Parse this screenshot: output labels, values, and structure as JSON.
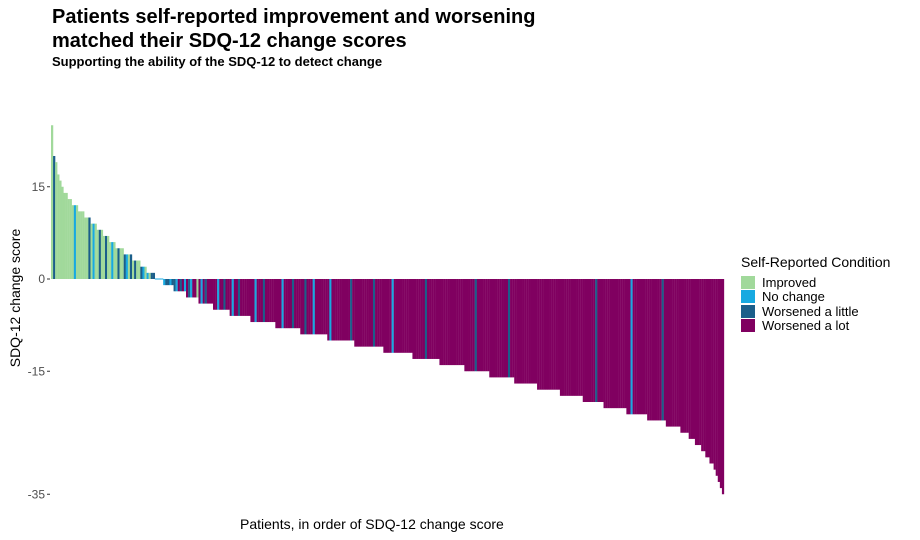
{
  "chart_data": {
    "type": "bar",
    "title": "Patients self-reported improvement and worsening matched their SDQ-12 change scores",
    "subtitle": "Supporting the ability of the SDQ-12 to detect change",
    "xlabel": "Patients, in order of SDQ-12 change score",
    "ylabel": "SDQ-12 change score",
    "ylim": [
      -36,
      25
    ],
    "yticks": [
      15,
      0,
      -15,
      -35
    ],
    "grid": false,
    "legend": {
      "title": "Self-Reported Condition",
      "placement": "right",
      "entries": [
        {
          "name": "Improved",
          "color": "#a1d99b"
        },
        {
          "name": "No change",
          "color": "#17a9e1"
        },
        {
          "name": "Worsened a little",
          "color": "#1b5e8a"
        },
        {
          "name": "Worsened a lot",
          "color": "#800060"
        }
      ]
    },
    "groups": [
      {
        "value": 25,
        "count": 1,
        "colors": [
          "Improved"
        ]
      },
      {
        "value": 20,
        "count": 1,
        "colors": [
          "Worsened a little"
        ]
      },
      {
        "value": 19,
        "count": 1,
        "colors": [
          "Improved"
        ]
      },
      {
        "value": 17,
        "count": 1,
        "colors": [
          "Improved"
        ]
      },
      {
        "value": 16,
        "count": 1,
        "colors": [
          "Improved"
        ]
      },
      {
        "value": 15,
        "count": 1,
        "colors": [
          "Improved"
        ]
      },
      {
        "value": 14,
        "count": 2,
        "colors": [
          "Improved"
        ]
      },
      {
        "value": 13,
        "count": 2,
        "colors": [
          "Improved"
        ]
      },
      {
        "value": 12,
        "count": 3,
        "colors": [
          "Improved",
          "No change"
        ]
      },
      {
        "value": 11,
        "count": 3,
        "colors": [
          "Improved"
        ]
      },
      {
        "value": 10,
        "count": 3,
        "colors": [
          "Improved",
          "Improved",
          "Worsened a little"
        ]
      },
      {
        "value": 9,
        "count": 3,
        "colors": [
          "Improved",
          "No change",
          "Improved"
        ]
      },
      {
        "value": 8,
        "count": 3,
        "colors": [
          "Improved",
          "Worsened a little",
          "Improved"
        ]
      },
      {
        "value": 7,
        "count": 3,
        "colors": [
          "Improved",
          "Worsened a little"
        ]
      },
      {
        "value": 6,
        "count": 3,
        "colors": [
          "Improved",
          "No change",
          "Improved"
        ]
      },
      {
        "value": 5,
        "count": 4,
        "colors": [
          "Improved",
          "Worsened a little",
          "Improved",
          "Improved"
        ]
      },
      {
        "value": 4,
        "count": 4,
        "colors": [
          "Worsened a little",
          "No change",
          "Improved",
          "Worsened a little"
        ]
      },
      {
        "value": 3,
        "count": 4,
        "colors": [
          "Improved",
          "Worsened a little",
          "Improved",
          "Improved"
        ]
      },
      {
        "value": 2,
        "count": 3,
        "colors": [
          "Worsened a little",
          "No change",
          "Improved"
        ]
      },
      {
        "value": 1,
        "count": 4,
        "colors": [
          "No change",
          "Improved",
          "Worsened a little",
          "Worsened a little"
        ]
      },
      {
        "value": 0,
        "count": 4,
        "colors": [
          "No change"
        ]
      },
      {
        "value": -1,
        "count": 5,
        "colors": [
          "No change",
          "Worsened a little",
          "Worsened a little",
          "No change",
          "Worsened a little"
        ]
      },
      {
        "value": -2,
        "count": 6,
        "colors": [
          "Worsened a little",
          "No change",
          "Worsened a lot",
          "Worsened a little",
          "Worsened a lot",
          "No change"
        ]
      },
      {
        "value": -3,
        "count": 6,
        "colors": [
          "Worsened a lot",
          "Worsened a little",
          "No change",
          "Worsened a lot",
          "Worsened a lot",
          "Improved"
        ]
      },
      {
        "value": -4,
        "count": 7,
        "colors": [
          "Worsened a lot",
          "No change",
          "Worsened a lot",
          "Worsened a little",
          "Worsened a lot",
          "Worsened a lot",
          "Worsened a lot"
        ]
      },
      {
        "value": -5,
        "count": 8,
        "colors": [
          "Worsened a lot",
          "Worsened a lot",
          "No change",
          "Worsened a lot",
          "Worsened a lot",
          "Worsened a little",
          "Worsened a lot",
          "Worsened a lot"
        ]
      },
      {
        "value": -6,
        "count": 10,
        "colors": [
          "Worsened a lot",
          "No change",
          "Worsened a lot",
          "Worsened a lot",
          "Worsened a little",
          "Worsened a lot",
          "Worsened a lot",
          "Worsened a lot",
          "Worsened a lot",
          "Worsened a lot"
        ]
      },
      {
        "value": -7,
        "count": 12,
        "colors": [
          "Worsened a lot",
          "Worsened a lot",
          "No change",
          "Worsened a lot",
          "Worsened a lot",
          "Worsened a lot",
          "Worsened a little",
          "Worsened a lot",
          "Worsened a lot",
          "Worsened a lot",
          "Worsened a lot",
          "Worsened a lot"
        ]
      },
      {
        "value": -8,
        "count": 12,
        "colors": [
          "Worsened a lot",
          "Worsened a lot",
          "Worsened a lot",
          "No change",
          "Worsened a lot",
          "Worsened a lot",
          "Worsened a lot",
          "Worsened a lot",
          "Worsened a little",
          "Worsened a lot",
          "Worsened a lot",
          "Worsened a lot"
        ]
      },
      {
        "value": -9,
        "count": 13,
        "colors": [
          "Worsened a lot",
          "Worsened a lot",
          "Worsened a little",
          "Worsened a lot",
          "Worsened a lot",
          "Worsened a lot",
          "No change",
          "Worsened a lot",
          "Worsened a lot",
          "Worsened a lot",
          "Worsened a lot",
          "Worsened a lot",
          "Worsened a lot"
        ]
      },
      {
        "value": -10,
        "count": 13,
        "colors": [
          "Worsened a lot",
          "No change",
          "Worsened a lot",
          "Worsened a lot",
          "Worsened a lot",
          "Worsened a lot",
          "Worsened a lot",
          "Worsened a lot",
          "Worsened a lot",
          "Worsened a lot",
          "Worsened a lot",
          "Worsened a little",
          "Worsened a lot"
        ]
      },
      {
        "value": -11,
        "count": 14,
        "colors": [
          "Worsened a lot",
          "Worsened a lot",
          "Worsened a lot",
          "Worsened a lot",
          "Worsened a lot",
          "Worsened a lot",
          "Worsened a lot",
          "Worsened a lot",
          "Worsened a lot",
          "Worsened a little",
          "Worsened a lot",
          "Worsened a lot",
          "Worsened a lot",
          "Worsened a lot"
        ]
      },
      {
        "value": -12,
        "count": 14,
        "colors": [
          "Worsened a lot",
          "Worsened a lot",
          "Worsened a lot",
          "Worsened a lot",
          "No change",
          "Worsened a lot",
          "Worsened a lot",
          "Worsened a lot",
          "Worsened a lot",
          "Worsened a lot",
          "Worsened a lot",
          "Worsened a lot",
          "Worsened a lot",
          "Worsened a lot"
        ]
      },
      {
        "value": -13,
        "count": 13,
        "colors": [
          "Worsened a lot",
          "Worsened a lot",
          "Worsened a lot",
          "Worsened a lot",
          "Worsened a lot",
          "Worsened a lot",
          "Worsened a little",
          "Worsened a lot",
          "Worsened a lot",
          "Worsened a lot",
          "Worsened a lot",
          "Worsened a lot",
          "Worsened a lot"
        ]
      },
      {
        "value": -14,
        "count": 12,
        "colors": [
          "Worsened a lot",
          "Worsened a lot",
          "Worsened a lot",
          "Worsened a lot",
          "Worsened a lot",
          "Worsened a lot",
          "Worsened a lot",
          "Worsened a lot",
          "Worsened a lot",
          "Worsened a lot",
          "Worsened a lot",
          "Worsened a lot"
        ]
      },
      {
        "value": -15,
        "count": 12,
        "colors": [
          "Worsened a lot",
          "Worsened a lot",
          "Worsened a lot",
          "Worsened a lot",
          "Worsened a lot",
          "Worsened a little",
          "Worsened a lot",
          "Worsened a lot",
          "Worsened a lot",
          "Worsened a lot",
          "Worsened a lot",
          "Worsened a lot"
        ]
      },
      {
        "value": -16,
        "count": 12,
        "colors": [
          "Worsened a lot",
          "Worsened a lot",
          "Worsened a lot",
          "Worsened a lot",
          "Worsened a lot",
          "Worsened a lot",
          "Worsened a lot",
          "Worsened a lot",
          "Worsened a lot",
          "Worsened a little",
          "Worsened a lot",
          "Worsened a lot"
        ]
      },
      {
        "value": -17,
        "count": 11,
        "colors": [
          "Worsened a lot",
          "Worsened a lot",
          "Worsened a lot",
          "Worsened a lot",
          "Worsened a lot",
          "Worsened a lot",
          "Worsened a lot",
          "Worsened a lot",
          "Worsened a lot",
          "Worsened a lot",
          "Worsened a lot"
        ]
      },
      {
        "value": -18,
        "count": 11,
        "colors": [
          "Worsened a lot",
          "Worsened a lot",
          "Worsened a lot",
          "Worsened a lot",
          "Worsened a lot",
          "Worsened a lot",
          "Worsened a lot",
          "Worsened a lot",
          "Worsened a lot",
          "Worsened a lot",
          "Worsened a lot"
        ]
      },
      {
        "value": -19,
        "count": 11,
        "colors": [
          "Worsened a lot",
          "Worsened a lot",
          "Worsened a lot",
          "Worsened a lot",
          "Worsened a lot",
          "Worsened a lot",
          "Worsened a lot",
          "Worsened a lot",
          "Worsened a lot",
          "Worsened a lot",
          "Worsened a lot"
        ]
      },
      {
        "value": -20,
        "count": 10,
        "colors": [
          "Worsened a lot",
          "Worsened a lot",
          "Worsened a lot",
          "Worsened a lot",
          "Worsened a lot",
          "Worsened a lot",
          "Worsened a little",
          "Worsened a lot",
          "Worsened a lot",
          "Worsened a lot"
        ]
      },
      {
        "value": -21,
        "count": 11,
        "colors": [
          "Worsened a lot",
          "Worsened a lot",
          "Worsened a lot",
          "Worsened a lot",
          "Worsened a lot",
          "Worsened a lot",
          "Worsened a lot",
          "Worsened a lot",
          "Worsened a lot",
          "Worsened a lot",
          "Worsened a lot"
        ]
      },
      {
        "value": -22,
        "count": 10,
        "colors": [
          "Worsened a lot",
          "Worsened a lot",
          "No change",
          "Worsened a lot",
          "Worsened a lot",
          "Worsened a lot",
          "Worsened a lot",
          "Worsened a lot",
          "Worsened a lot",
          "Worsened a lot"
        ]
      },
      {
        "value": -23,
        "count": 9,
        "colors": [
          "Worsened a lot",
          "Worsened a lot",
          "Worsened a lot",
          "Worsened a lot",
          "Worsened a lot",
          "Worsened a lot",
          "Worsened a lot",
          "Worsened a little",
          "Worsened a lot"
        ]
      },
      {
        "value": -24,
        "count": 7,
        "colors": [
          "Worsened a lot"
        ]
      },
      {
        "value": -25,
        "count": 4,
        "colors": [
          "Worsened a lot"
        ]
      },
      {
        "value": -26,
        "count": 3,
        "colors": [
          "Worsened a lot"
        ]
      },
      {
        "value": -27,
        "count": 3,
        "colors": [
          "Worsened a lot"
        ]
      },
      {
        "value": -28,
        "count": 2,
        "colors": [
          "Worsened a lot"
        ]
      },
      {
        "value": -29,
        "count": 2,
        "colors": [
          "Worsened a lot"
        ]
      },
      {
        "value": -30,
        "count": 2,
        "colors": [
          "Worsened a lot"
        ]
      },
      {
        "value": -31,
        "count": 1,
        "colors": [
          "Worsened a lot"
        ]
      },
      {
        "value": -32,
        "count": 1,
        "colors": [
          "Worsened a lot"
        ]
      },
      {
        "value": -33,
        "count": 1,
        "colors": [
          "Worsened a lot"
        ]
      },
      {
        "value": -34,
        "count": 1,
        "colors": [
          "Worsened a lot"
        ]
      },
      {
        "value": -35,
        "count": 1,
        "colors": [
          "Worsened a lot"
        ]
      }
    ]
  }
}
